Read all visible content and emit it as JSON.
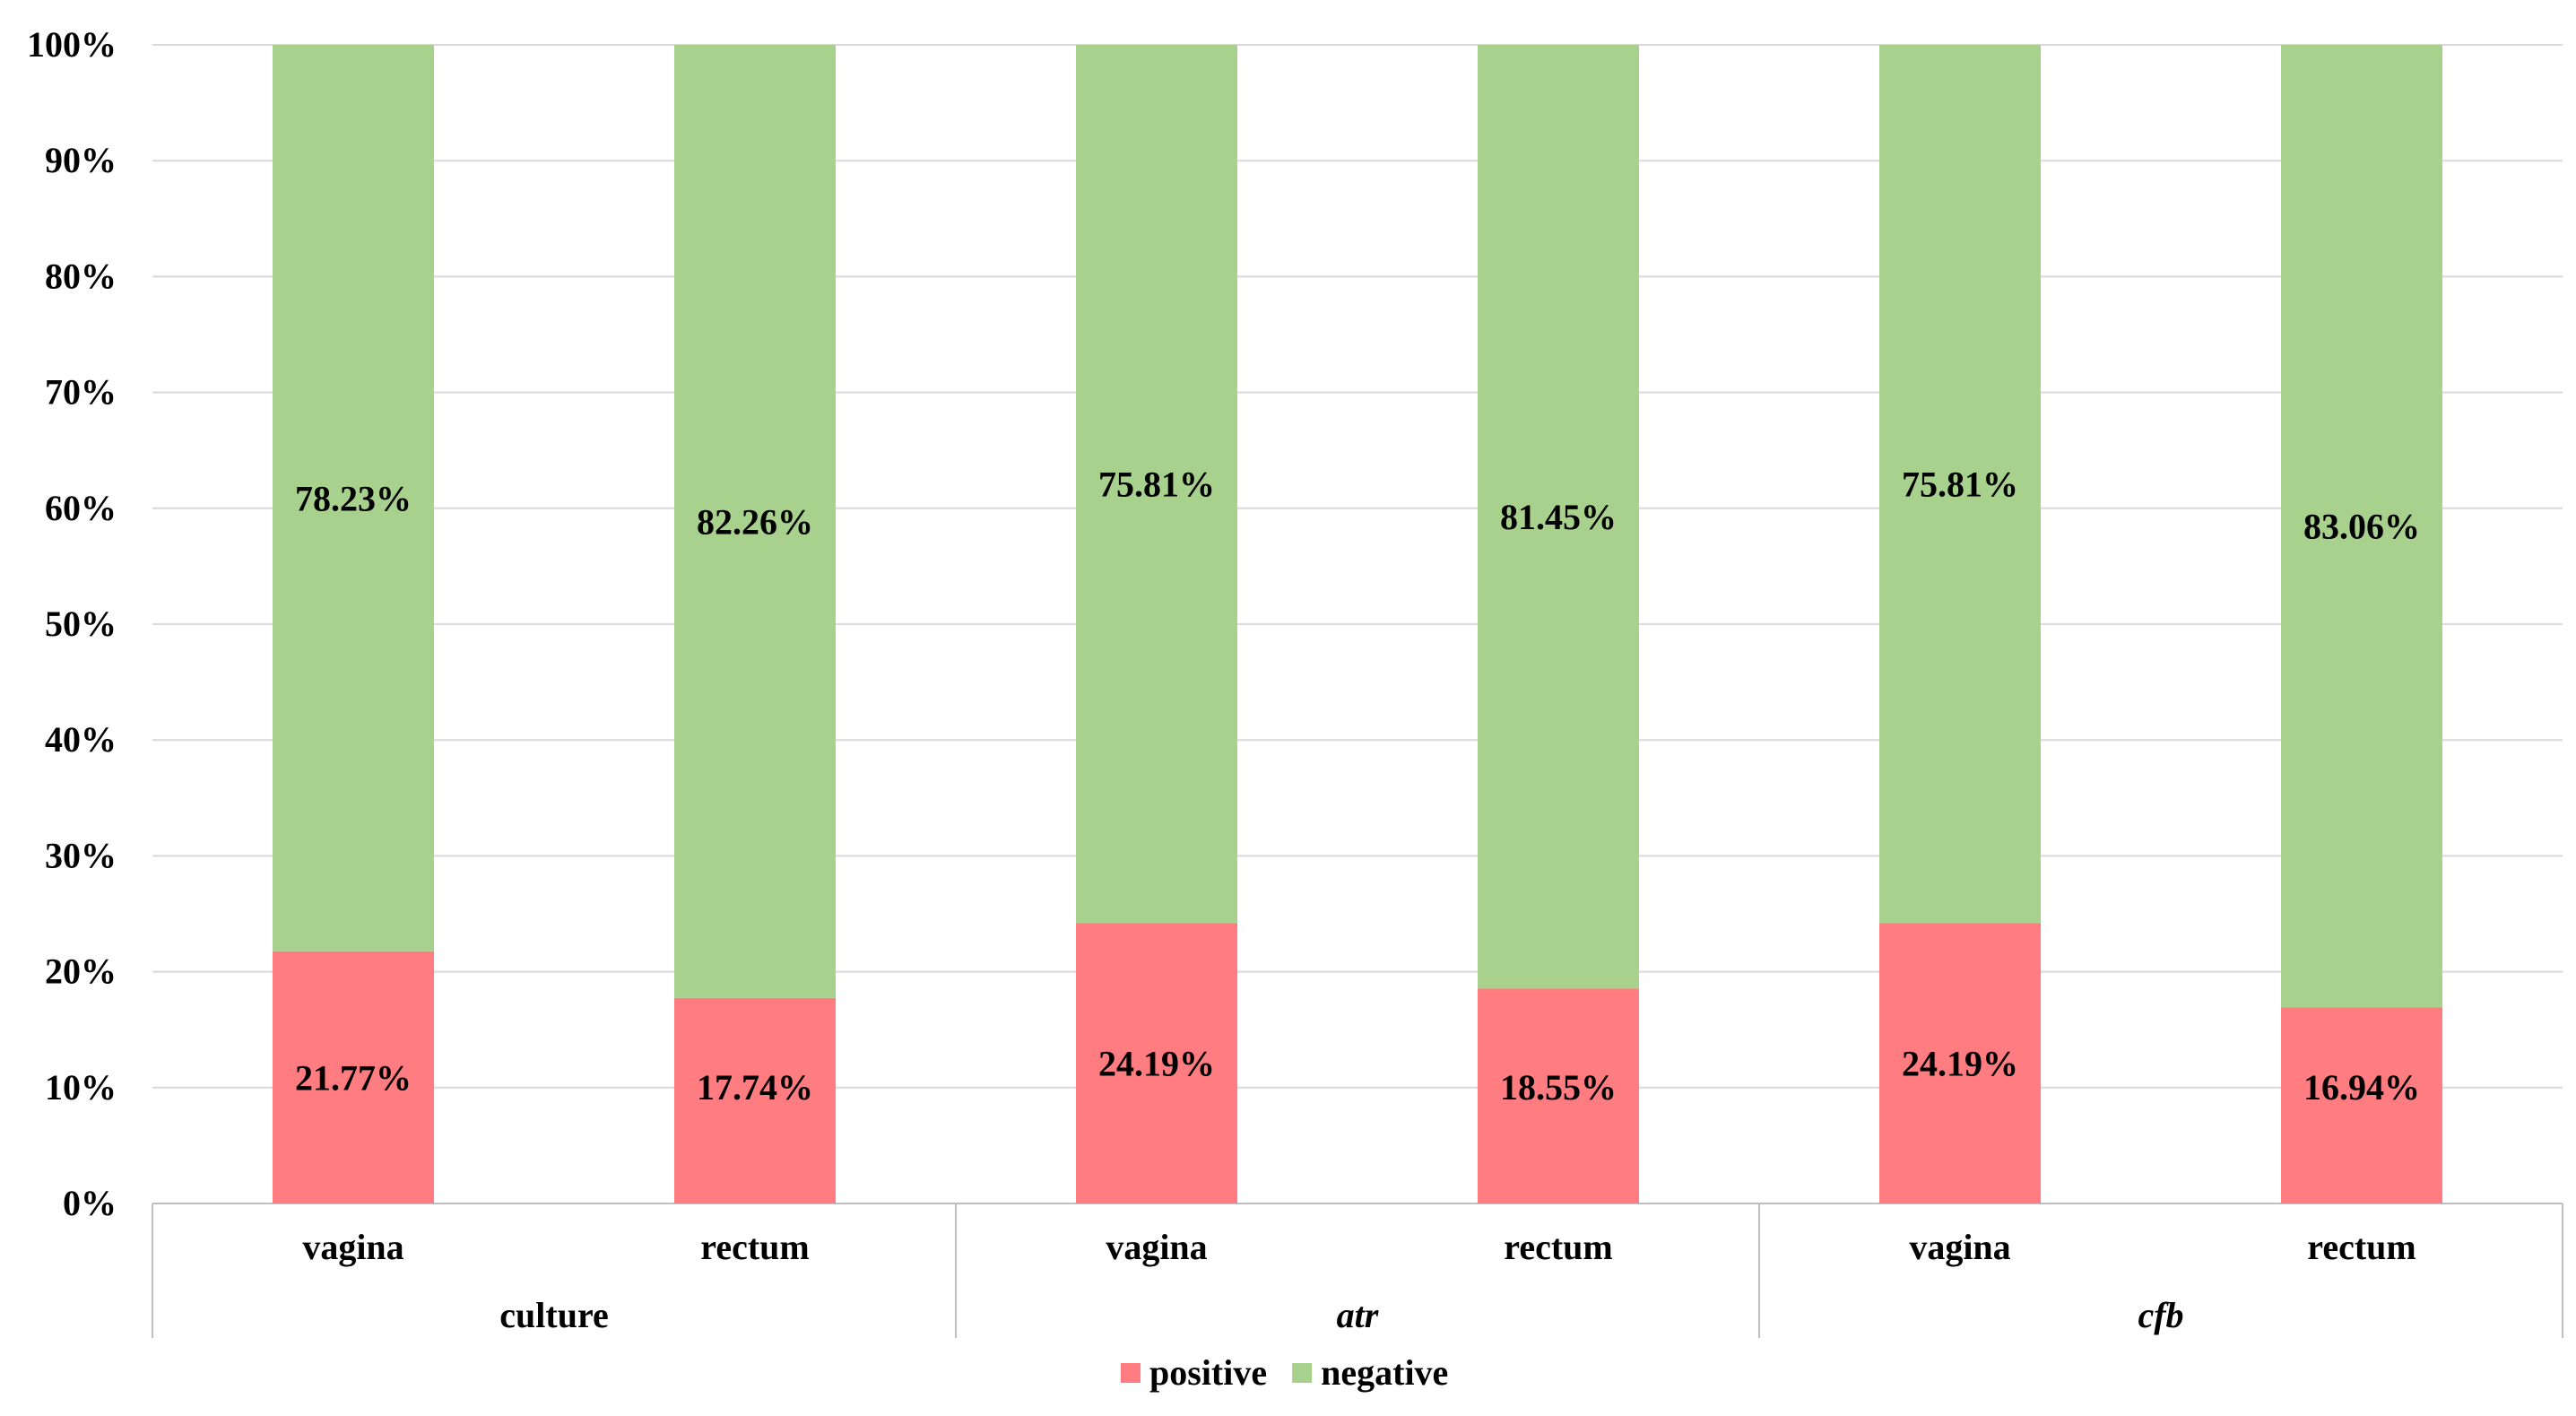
{
  "chart_data": {
    "type": "bar",
    "stacked": true,
    "categories": [
      "vagina",
      "rectum",
      "vagina",
      "rectum",
      "vagina",
      "rectum"
    ],
    "groups": [
      {
        "label": "culture",
        "italic": false,
        "span": [
          0,
          1
        ]
      },
      {
        "label": "atr",
        "italic": true,
        "span": [
          2,
          3
        ]
      },
      {
        "label": "cfb",
        "italic": true,
        "span": [
          4,
          5
        ]
      }
    ],
    "series": [
      {
        "name": "positive",
        "color": "#ff7c80",
        "values": [
          21.77,
          17.74,
          24.19,
          18.55,
          24.19,
          16.94
        ],
        "labels": [
          "21.77%",
          "17.74%",
          "24.19%",
          "18.55%",
          "24.19%",
          "16.94%"
        ]
      },
      {
        "name": "negative",
        "color": "#a9d18e",
        "values": [
          78.23,
          82.26,
          75.81,
          81.45,
          75.81,
          83.06
        ],
        "labels": [
          "78.23%",
          "82.26%",
          "75.81%",
          "81.45%",
          "75.81%",
          "83.06%"
        ]
      }
    ],
    "ylim": [
      0,
      100
    ],
    "yticks": [
      0,
      10,
      20,
      30,
      40,
      50,
      60,
      70,
      80,
      90,
      100
    ],
    "ytick_labels": [
      "0%",
      "10%",
      "20%",
      "30%",
      "40%",
      "50%",
      "60%",
      "70%",
      "80%",
      "90%",
      "100%"
    ],
    "grid": true,
    "gridline_color": "#d9d9d9",
    "legend_position": "bottom",
    "title": "",
    "xlabel": "",
    "ylabel": ""
  }
}
